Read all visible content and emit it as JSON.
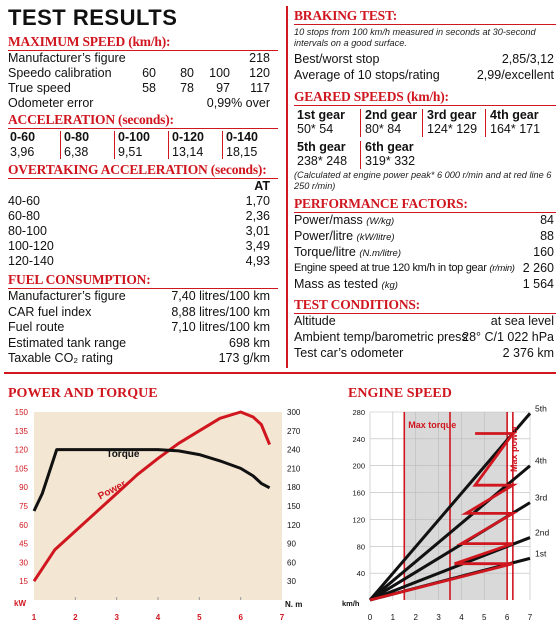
{
  "title": "TEST RESULTS",
  "max_speed": {
    "heading": "MAXIMUM SPEED (km/h):",
    "rows": [
      {
        "label": "Manufacturer’s figure",
        "cols": [
          "",
          "",
          "",
          "218"
        ]
      },
      {
        "label": "Speedo calibration",
        "cols": [
          "60",
          "80",
          "100",
          "120"
        ]
      },
      {
        "label": "True speed",
        "cols": [
          "58",
          "78",
          "97",
          "117"
        ]
      },
      {
        "label": "Odometer error",
        "cols": [
          "",
          "",
          "",
          "0,99% over"
        ]
      }
    ]
  },
  "acceleration": {
    "heading": "ACCELERATION (seconds):",
    "items": [
      {
        "label": "0-60",
        "value": "3,96"
      },
      {
        "label": "0-80",
        "value": "6,38"
      },
      {
        "label": "0-100",
        "value": "9,51"
      },
      {
        "label": "0-120",
        "value": "13,14"
      },
      {
        "label": "0-140",
        "value": "18,15"
      }
    ]
  },
  "overtaking": {
    "heading": "OVERTAKING ACCELERATION (seconds):",
    "col_header": "AT",
    "rows": [
      {
        "label": "40-60",
        "value": "1,70"
      },
      {
        "label": "60-80",
        "value": "2,36"
      },
      {
        "label": "80-100",
        "value": "3,01"
      },
      {
        "label": "100-120",
        "value": "3,49"
      },
      {
        "label": "120-140",
        "value": "4,93"
      }
    ]
  },
  "fuel": {
    "heading": "FUEL CONSUMPTION:",
    "rows": [
      {
        "label": "Manufacturer’s figure",
        "value": "7,40 litres/100 km"
      },
      {
        "label": "CAR fuel index",
        "value": "8,88 litres/100 km"
      },
      {
        "label": "Fuel route",
        "value": "7,10 litres/100 km"
      },
      {
        "label": "Estimated tank range",
        "value": "698 km"
      },
      {
        "label": "Taxable CO₂ rating",
        "value": "173 g/km"
      }
    ]
  },
  "braking": {
    "heading": "BRAKING TEST:",
    "note": "10 stops from 100 km/h measured in seconds at 30-second intervals on a good surface.",
    "rows": [
      {
        "label": "Best/worst stop",
        "value": "2,85/3,12"
      },
      {
        "label": "Average of 10 stops/rating",
        "value": "2,99/excellent"
      }
    ]
  },
  "geared": {
    "heading": "GEARED SPEEDS (km/h):",
    "gears": [
      {
        "name": "1st gear",
        "value": "50* 54"
      },
      {
        "name": "2nd gear",
        "value": "80* 84"
      },
      {
        "name": "3rd gear",
        "value": "124* 129"
      },
      {
        "name": "4th gear",
        "value": "164* 171"
      },
      {
        "name": "5th gear",
        "value": "238* 248"
      },
      {
        "name": "6th gear",
        "value": "319* 332"
      }
    ],
    "note": "(Calculated at engine power peak* 6 000 r/min and at red line 6 250 r/min)"
  },
  "performance": {
    "heading": "PERFORMANCE FACTORS:",
    "rows": [
      {
        "label": "Power/mass",
        "unit": "(W/kg)",
        "value": "84"
      },
      {
        "label": "Power/litre",
        "unit": "(kW/litre)",
        "value": "88"
      },
      {
        "label": "Torque/litre",
        "unit": "(N.m/litre)",
        "value": "160"
      },
      {
        "label": "Engine speed at true 120 km/h in top gear",
        "unit": "(r/min)",
        "value": "2 260"
      },
      {
        "label": "Mass as tested",
        "unit": "(kg)",
        "value": "1 564"
      }
    ]
  },
  "conditions": {
    "heading": "TEST CONDITIONS:",
    "rows": [
      {
        "label": "Altitude",
        "value": "at sea level"
      },
      {
        "label": "Ambient temp/barometric press",
        "value": "28° C/1 022 hPa"
      },
      {
        "label": "Test car’s odometer",
        "value": "2 376 km"
      }
    ]
  },
  "colors": {
    "accent": "#d0161f",
    "chart_bg": "#f3e6d3",
    "zone_bg": "#d9d9d9"
  },
  "chart_data": [
    {
      "type": "line",
      "title": "POWER AND TORQUE",
      "xlabel": "",
      "x_ticks": [
        "1",
        "2",
        "3",
        "4",
        "5",
        "6",
        "7"
      ],
      "xlim": [
        1,
        7
      ],
      "y_left_label": "kW",
      "y_left_ticks": [
        "15",
        "30",
        "45",
        "60",
        "75",
        "90",
        "105",
        "120",
        "135",
        "150"
      ],
      "ylim_left": [
        0,
        150
      ],
      "y_right_label": "N. m",
      "y_right_ticks": [
        "30",
        "60",
        "90",
        "120",
        "150",
        "180",
        "210",
        "240",
        "270",
        "300"
      ],
      "ylim_right": [
        0,
        300
      ],
      "series": [
        {
          "name": "Power",
          "axis": "left",
          "color": "#d0161f",
          "points": [
            [
              1.0,
              15
            ],
            [
              1.5,
              40
            ],
            [
              2.0,
              55
            ],
            [
              2.5,
              70
            ],
            [
              3.0,
              85
            ],
            [
              3.5,
              100
            ],
            [
              4.0,
              113
            ],
            [
              4.5,
              125
            ],
            [
              5.0,
              135
            ],
            [
              5.5,
              145
            ],
            [
              6.0,
              150
            ],
            [
              6.3,
              146
            ],
            [
              6.5,
              140
            ],
            [
              6.7,
              124
            ]
          ]
        },
        {
          "name": "Torque",
          "axis": "right",
          "color": "#111111",
          "points": [
            [
              1.0,
              142
            ],
            [
              1.2,
              170
            ],
            [
              1.55,
              240
            ],
            [
              2.0,
              240
            ],
            [
              3.0,
              240
            ],
            [
              4.0,
              240
            ],
            [
              4.5,
              238
            ],
            [
              5.0,
              232
            ],
            [
              5.5,
              222
            ],
            [
              6.0,
              210
            ],
            [
              6.3,
              198
            ],
            [
              6.5,
              186
            ],
            [
              6.7,
              179
            ]
          ]
        }
      ]
    },
    {
      "type": "line",
      "title": "ENGINE SPEED",
      "xlabel": "",
      "x_ticks": [
        "0",
        "1",
        "2",
        "3",
        "4",
        "5",
        "6",
        "7"
      ],
      "xlim": [
        0,
        7
      ],
      "ylabel": "km/h",
      "y_ticks": [
        "40",
        "80",
        "120",
        "160",
        "200",
        "240",
        "280"
      ],
      "ylim": [
        0,
        280
      ],
      "annotations": [
        {
          "text": "Max torque",
          "x": 1.5
        },
        {
          "text": "Max power",
          "x": 6.0
        }
      ],
      "red_lines_x": [
        1.5,
        3.5,
        6.0,
        6.25
      ],
      "series": [
        {
          "name": "1st",
          "points": [
            [
              0,
              0
            ],
            [
              7,
              62
            ]
          ]
        },
        {
          "name": "2nd",
          "points": [
            [
              0,
              0
            ],
            [
              7,
              93
            ]
          ]
        },
        {
          "name": "3rd",
          "points": [
            [
              0,
              0
            ],
            [
              7,
              145
            ]
          ]
        },
        {
          "name": "4th",
          "points": [
            [
              0,
              0
            ],
            [
              7,
              200
            ]
          ]
        },
        {
          "name": "5th",
          "points": [
            [
              0,
              0
            ],
            [
              7,
              278
            ]
          ]
        }
      ],
      "shift_path": [
        [
          0,
          0
        ],
        [
          6.25,
          54
        ],
        [
          3.7,
          54
        ],
        [
          6.25,
          84
        ],
        [
          4.0,
          84
        ],
        [
          6.25,
          129
        ],
        [
          4.2,
          129
        ],
        [
          6.25,
          171
        ],
        [
          4.6,
          171
        ],
        [
          6.25,
          248
        ],
        [
          4.6,
          248
        ]
      ]
    }
  ]
}
